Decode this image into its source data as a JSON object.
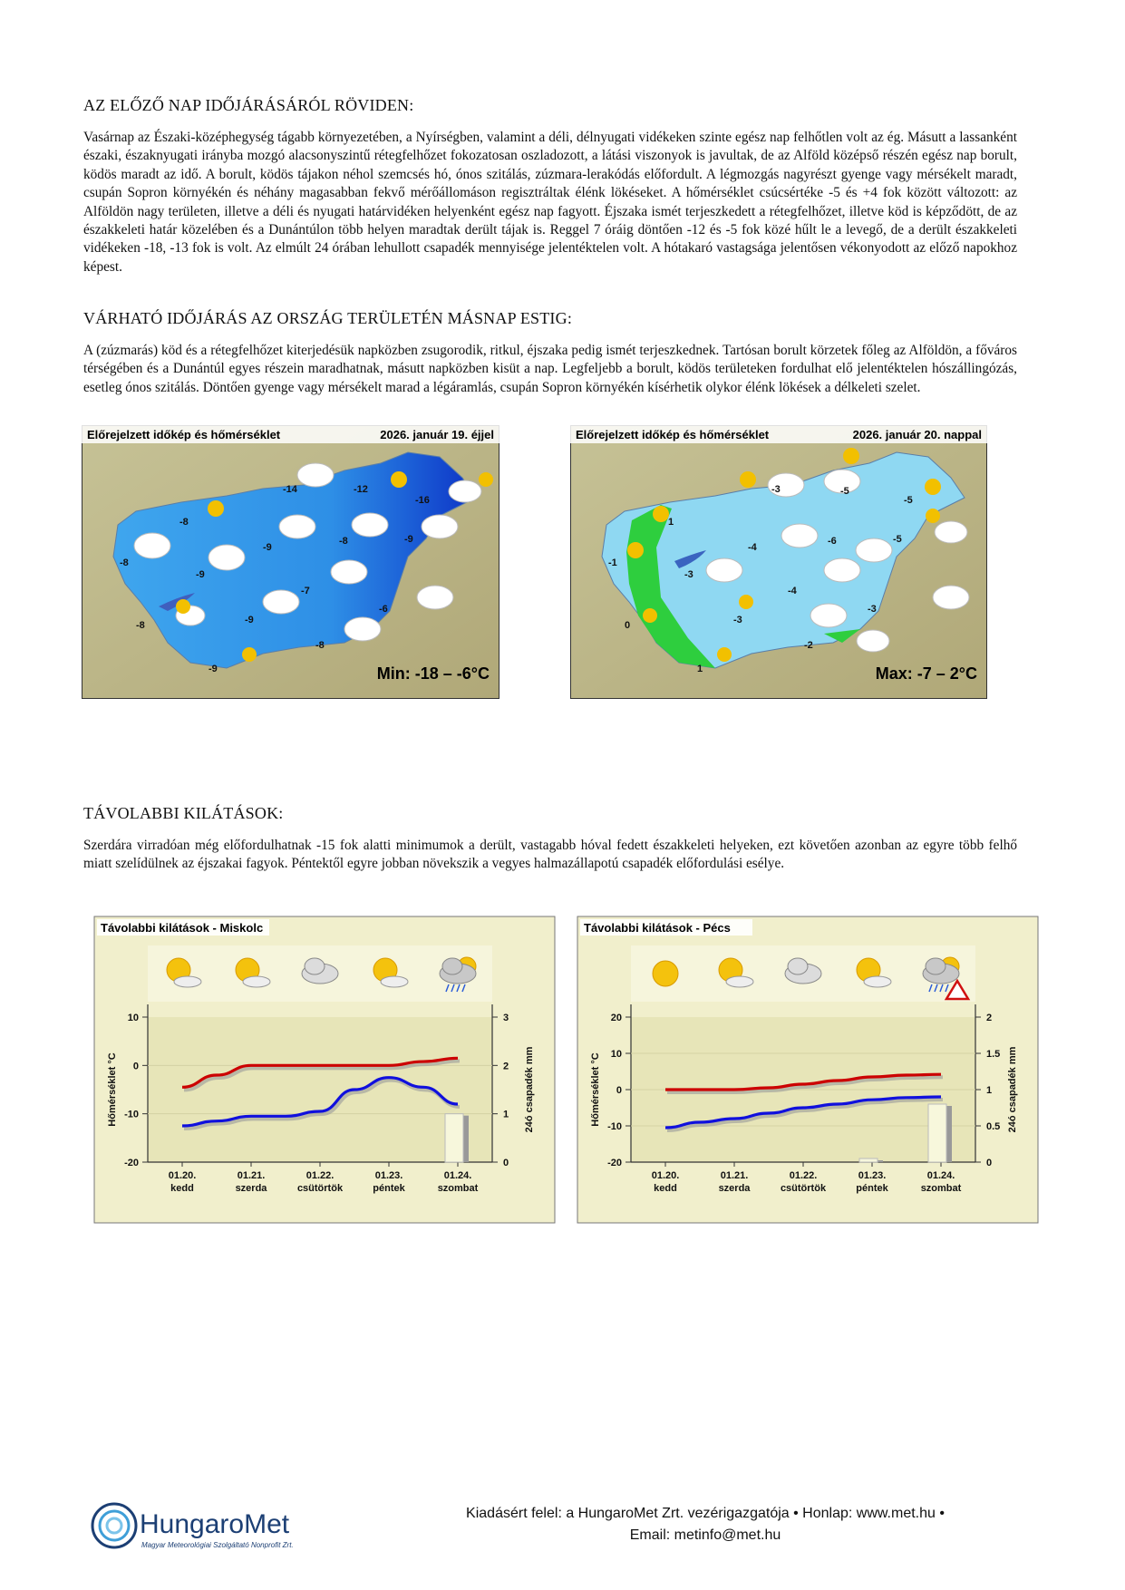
{
  "section1": {
    "heading": "AZ ELŐZŐ NAP IDŐJÁRÁSÁRÓL RÖVIDEN:",
    "text": "Vasárnap az Északi-középhegység tágabb környezetében, a Nyírségben, valamint a déli, délnyugati vidékeken szinte egész nap felhőtlen volt az ég. Másutt a lassanként északi, északnyugati irányba mozgó alacsonyszintű rétegfelhőzet fokozatosan oszladozott, a látási viszonyok is javultak, de az Alföld középső részén egész nap borult, ködös maradt az idő. A borult, ködös tájakon néhol szemcsés hó, ónos szitálás, zúzmara-lerakódás előfordult. A légmozgás nagyrészt gyenge vagy mérsékelt maradt, csupán Sopron környékén és néhány magasabban fekvő mérőállomáson regisztráltak élénk lökéseket. A hőmérséklet csúcsértéke -5 és +4 fok között változott: az Alföldön nagy területen, illetve a déli és nyugati határvidéken helyenként egész nap fagyott. Éjszaka ismét terjeszkedett a rétegfelhőzet, illetve köd is képződött, de az északkeleti határ közelében és a Dunántúlon több helyen maradtak derült tájak is. Reggel 7 óráig döntően -12 és -5 fok közé hűlt le a levegő, de a derült északkeleti vidékeken -18, -13 fok is volt. Az elmúlt 24 órában lehullott csapadék mennyisége jelentéktelen volt. A hótakaró vastagsága jelentősen vékonyodott az előző napokhoz képest."
  },
  "section2": {
    "heading": "VÁRHATÓ IDŐJÁRÁS AZ ORSZÁG TERÜLETÉN MÁSNAP ESTIG:",
    "text": "A (zúzmarás) köd és a rétegfelhőzet kiterjedésük napközben zsugorodik, ritkul, éjszaka pedig ismét terjeszkednek. Tartósan borult körzetek főleg az Alföldön, a főváros térségében és a Dunántúl egyes részein maradhatnak, másutt napközben kisüt a nap. Legfeljebb a borult, ködös területeken fordulhat elő jelentéktelen hószállingózás, esetleg ónos szitálás. Döntően gyenge vagy mérsékelt marad a légáramlás, csupán Sopron környékén kísérhetik olykor élénk lökések a délkeleti szelet."
  },
  "map_night": {
    "title": "Előrejelzett időkép és hőmérséklet",
    "date": "2026. január 19. éjjel",
    "range": "Min: -18 – -6°C",
    "temps": [
      "-14",
      "-12",
      "-16",
      "-8",
      "-8",
      "-9",
      "-8",
      "-9",
      "-9",
      "-7",
      "-6",
      "-9",
      "-8",
      "-8",
      "-9"
    ]
  },
  "map_day": {
    "title": "Előrejelzett időkép és hőmérséklet",
    "date": "2026. január 20. nappal",
    "range": "Max: -7 – 2°C",
    "temps": [
      "-3",
      "-5",
      "-5",
      "1",
      "-4",
      "-6",
      "-5",
      "-1",
      "-3",
      "-4",
      "-3",
      "-3",
      "0",
      "-2",
      "1"
    ]
  },
  "section3": {
    "heading": "TÁVOLABBI KILÁTÁSOK:",
    "text": "Szerdára virradóan még előfordulhatnak -15 fok alatti minimumok a derült, vastagabb hóval fedett északkeleti helyeken, ezt követően azonban az egyre több felhő miatt szelídülnek az éjszakai fagyok. Péntektől egyre jobban növekszik a vegyes halmazállapotú csapadék előfordulási esélye."
  },
  "chart_data": [
    {
      "type": "line",
      "title": "Távolabbi kilátások - Miskolc",
      "categories": [
        "01.20. kedd",
        "01.21. szerda",
        "01.22. csütörtök",
        "01.23. péntek",
        "01.24. szombat"
      ],
      "dates": [
        "01.20.",
        "01.21.",
        "01.22.",
        "01.23.",
        "01.24."
      ],
      "days": [
        "kedd",
        "szerda",
        "csütörtök",
        "péntek",
        "szombat"
      ],
      "ylabel": "Hőmérséklet °C",
      "y2label": "24ó csapadék mm",
      "ylim": [
        -20,
        10
      ],
      "yticks": [
        "10",
        "0",
        "-10",
        "-20"
      ],
      "y2lim": [
        0,
        3
      ],
      "y2ticks": [
        "3",
        "2",
        "1",
        "0"
      ],
      "series": [
        {
          "x": [
            0,
            0.5,
            1,
            1.5,
            2,
            2.5,
            3,
            3.5,
            4
          ],
          "values": [
            -4.5,
            -2,
            0,
            0,
            0,
            0,
            0,
            0.8,
            1.5
          ],
          "color": "#cc0000"
        },
        {
          "x": [
            0,
            0.5,
            1,
            1.5,
            2,
            2.5,
            3,
            3.5,
            4
          ],
          "values": [
            -12.5,
            -11.5,
            -10.5,
            -10.5,
            -9.5,
            -5,
            -2.5,
            -4.5,
            -8
          ],
          "color": "#1010dd"
        }
      ],
      "precip": [
        0,
        0,
        0,
        0,
        1.0
      ],
      "weather_icons": [
        "sun-cloud-icon",
        "sun-cloud-icon",
        "cloudy-icon",
        "sun-cloud-icon",
        "rain-cloud-icon"
      ]
    },
    {
      "type": "line",
      "title": "Távolabbi kilátások - Pécs",
      "categories": [
        "01.20. kedd",
        "01.21. szerda",
        "01.22. csütörtök",
        "01.23. péntek",
        "01.24. szombat"
      ],
      "dates": [
        "01.20.",
        "01.21.",
        "01.22.",
        "01.23.",
        "01.24."
      ],
      "days": [
        "kedd",
        "szerda",
        "csütörtök",
        "péntek",
        "szombat"
      ],
      "ylabel": "Hőmérséklet °C",
      "y2label": "24ó csapadék mm",
      "ylim": [
        -20,
        20
      ],
      "yticks": [
        "20",
        "10",
        "0",
        "-10",
        "-20"
      ],
      "y2lim": [
        0,
        2
      ],
      "y2ticks": [
        "2",
        "1.5",
        "1",
        "0.5",
        "0"
      ],
      "series": [
        {
          "x": [
            0,
            0.5,
            1,
            1.5,
            2,
            2.5,
            3,
            3.5,
            4
          ],
          "values": [
            0,
            0,
            0,
            0.5,
            1.5,
            2.5,
            3.5,
            4,
            4.2
          ],
          "color": "#cc0000"
        },
        {
          "x": [
            0,
            0.5,
            1,
            1.5,
            2,
            2.5,
            3,
            3.5,
            4
          ],
          "values": [
            -10.5,
            -9,
            -8,
            -6.5,
            -5,
            -4,
            -2.8,
            -2.2,
            -2
          ],
          "color": "#1010dd"
        }
      ],
      "precip": [
        0,
        0,
        0,
        0.05,
        0.8
      ],
      "weather_icons": [
        "sun-icon",
        "sun-cloud-icon",
        "cloudy-icon",
        "sun-cloud-icon",
        "snow-rain-warning-icon"
      ]
    }
  ],
  "footer": {
    "line1": "Kiadásért felel: a HungaroMet Zrt. vezérigazgatója • Honlap: www.met.hu •",
    "line2": "Email: metinfo@met.hu",
    "logo_name": "HungaroMet",
    "logo_sub": "Magyar Meteorológiai Szolgáltató Nonprofit Zrt."
  }
}
